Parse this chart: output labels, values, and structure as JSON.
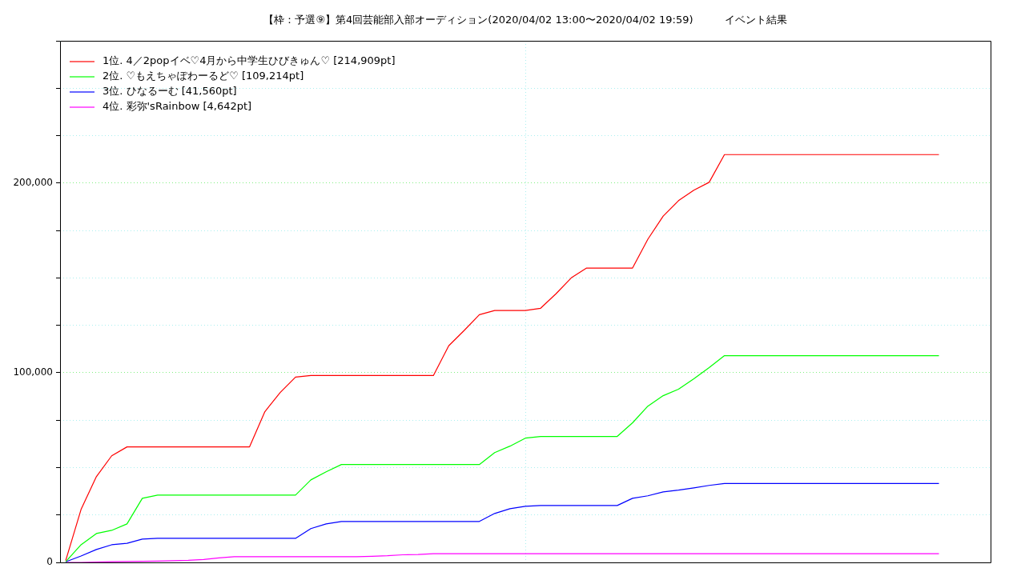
{
  "chart_data": {
    "type": "line",
    "title": "【枠：予選⑨】第4回芸能部入部オーディション(2020/04/02 13:00〜2020/04/02 19:59)　　　イベント結果",
    "categories": [
      null,
      null,
      null,
      null,
      null,
      null,
      null,
      null,
      null,
      null,
      null,
      null,
      null,
      null,
      null,
      null,
      null,
      null,
      null,
      null,
      null,
      null,
      null,
      null,
      null,
      null,
      null,
      null,
      null,
      null,
      null,
      null,
      null,
      null,
      null,
      null,
      null,
      null,
      null,
      null,
      null,
      null,
      null,
      null,
      null,
      null,
      null,
      null,
      null,
      null,
      null,
      null,
      null,
      null,
      null,
      null,
      null,
      null
    ],
    "series": [
      {
        "name": "1位. 4／2popイベ♡4月から中学生ひびきゅん♡ [214,909pt]",
        "color": "#ff0000",
        "values": [
          1000,
          27900,
          45200,
          56200,
          60900,
          60900,
          60900,
          60900,
          60900,
          60900,
          60900,
          60900,
          60900,
          79500,
          89600,
          97700,
          98500,
          98500,
          98500,
          98500,
          98500,
          98500,
          98500,
          98500,
          98500,
          114200,
          122200,
          130600,
          132800,
          132800,
          132800,
          134000,
          141600,
          150000,
          155200,
          155200,
          155200,
          155200,
          170400,
          182600,
          190700,
          196200,
          200400,
          215000,
          215000,
          215000,
          215000,
          215000,
          215000,
          215000,
          215000,
          215000,
          215000,
          215000,
          215000,
          215000,
          215000,
          215000
        ]
      },
      {
        "name": "2位. ♡もえちゃぽわーるど♡ [109,214pt]",
        "color": "#00ff00",
        "values": [
          400,
          9300,
          15200,
          16900,
          20300,
          33800,
          35500,
          35500,
          35500,
          35500,
          35500,
          35500,
          35500,
          35500,
          35500,
          35500,
          43500,
          47800,
          51600,
          51600,
          51600,
          51600,
          51600,
          51600,
          51600,
          51600,
          51600,
          51600,
          57900,
          61300,
          65500,
          66400,
          66400,
          66400,
          66400,
          66400,
          66400,
          73600,
          82400,
          87900,
          91300,
          96800,
          102700,
          109000,
          109000,
          109000,
          109000,
          109000,
          109000,
          109000,
          109000,
          109000,
          109000,
          109000,
          109000,
          109000,
          109000,
          109000
        ]
      },
      {
        "name": "3位. ひなるーむ [41,560pt]",
        "color": "#0000ff",
        "values": [
          300,
          3400,
          6800,
          9300,
          10100,
          12300,
          12700,
          12700,
          12700,
          12700,
          12700,
          12700,
          12700,
          12700,
          12700,
          12700,
          17800,
          20300,
          21600,
          21600,
          21600,
          21600,
          21600,
          21600,
          21600,
          21600,
          21600,
          21600,
          25800,
          28300,
          29600,
          30000,
          30000,
          30000,
          30000,
          30000,
          30000,
          33800,
          35100,
          37200,
          38100,
          39300,
          40600,
          41600,
          41600,
          41600,
          41600,
          41600,
          41600,
          41600,
          41600,
          41600,
          41600,
          41600,
          41600,
          41600,
          41600,
          41600
        ]
      },
      {
        "name": "4位. 彩弥'sRainbow [4,642pt]",
        "color": "#ff00ff",
        "values": [
          0,
          0,
          200,
          400,
          500,
          600,
          700,
          900,
          1100,
          1500,
          2400,
          3000,
          3000,
          3000,
          3000,
          3000,
          3000,
          3000,
          3000,
          3000,
          3200,
          3500,
          4000,
          4200,
          4600,
          4600,
          4600,
          4600,
          4600,
          4600,
          4600,
          4600,
          4600,
          4600,
          4600,
          4600,
          4600,
          4600,
          4600,
          4600,
          4600,
          4600,
          4600,
          4600,
          4600,
          4600,
          4600,
          4600,
          4600,
          4600,
          4600,
          4600,
          4600,
          4600,
          4600,
          4600,
          4600,
          4600
        ]
      }
    ],
    "ylim": [
      0,
      275000
    ],
    "yticks": [
      0,
      {
        "value": 25000,
        "label": null
      },
      {
        "value": 50000,
        "label": null
      },
      {
        "value": 75000,
        "label": null
      },
      {
        "value": 100000,
        "label": "100,000"
      },
      {
        "value": 125000,
        "label": null
      },
      {
        "value": 150000,
        "label": null
      },
      {
        "value": 175000,
        "label": null
      },
      {
        "value": 200000,
        "label": "200,000"
      },
      {
        "value": 225000,
        "label": null
      },
      {
        "value": 250000,
        "label": null
      },
      {
        "value": 275000,
        "label": null
      }
    ],
    "grid": true,
    "legend": "top left"
  }
}
